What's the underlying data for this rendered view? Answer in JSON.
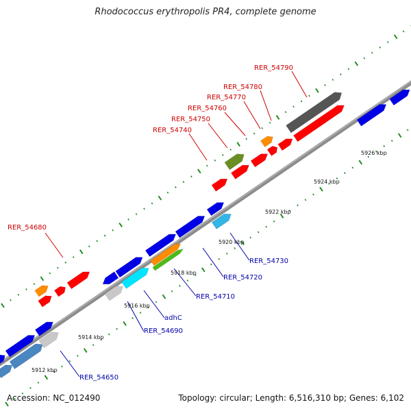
{
  "title": "Rhodococcus erythropolis PR4, complete genome",
  "footer": {
    "accession": "Accession: NC_012490",
    "summary": "Topology: circular; Length: 6,516,310 bp; Genes: 6,102"
  },
  "colors": {
    "backbone": "#8c8c8c",
    "tick": "#228b22",
    "label_red": "#cc0000",
    "label_blue": "#0000aa",
    "feature_red": "#ff0000",
    "feature_blue": "#0000e6",
    "feature_steelblue": "#4a86c0",
    "feature_gray": "#c8c8c8",
    "feature_darkgray": "#555555",
    "feature_cyan": "#00e5ff",
    "feature_skyblue": "#33b5e5",
    "feature_orange": "#ff8c00",
    "feature_olive": "#6b8e23",
    "feature_green": "#4cbb17"
  },
  "scale_ticks": [
    "5912 kbp",
    "5914 kbp",
    "5916 kbp",
    "5918 kbp",
    "5920 kbp",
    "5922 kbp",
    "5924 kbp",
    "5926 kbp"
  ],
  "gene_labels_top": [
    "RER_54680",
    "RER_54740",
    "RER_54750",
    "RER_54760",
    "RER_54770",
    "RER_54780",
    "RER_54790"
  ],
  "gene_labels_bottom": [
    "RER_54650",
    "RER_54690",
    "adhC",
    "RER_54710",
    "RER_54720",
    "RER_54730"
  ]
}
